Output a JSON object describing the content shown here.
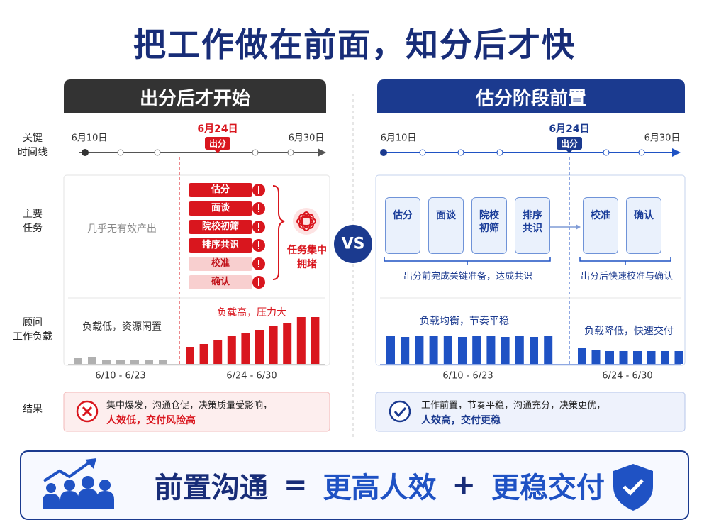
{
  "title": "把工作做在前面，知分后才快",
  "row_labels": [
    [
      "关键",
      "时间线"
    ],
    [
      "主要",
      "任务"
    ],
    [
      "顾问",
      "工作负载"
    ],
    [
      "结果"
    ]
  ],
  "left": {
    "header": "出分后才开始",
    "timeline": {
      "start": "6月10日",
      "mid": "6月24日",
      "mid_tag": "出分",
      "end": "6月30日"
    },
    "no_output": "几乎无有效产出",
    "tasks": [
      "估分",
      "面谈",
      "院校初筛",
      "排序共识",
      "校准",
      "确认"
    ],
    "crowd_label": [
      "任务集中",
      "拥堵"
    ],
    "load_before_label": "负载低，资源闲置",
    "load_after_label": "负载高，压力大",
    "load_before": [
      8,
      10,
      6,
      6,
      6,
      5,
      5
    ],
    "load_after": [
      24,
      28,
      34,
      40,
      44,
      48,
      54,
      58,
      66,
      66
    ],
    "period_before": "6/10 - 6/23",
    "period_after": "6/24 - 6/30",
    "result": [
      "集中爆发，沟通仓促，决策质量受影响，",
      "人效低，交付风险高"
    ]
  },
  "vs": "VS",
  "right": {
    "header": "估分阶段前置",
    "timeline": {
      "start": "6月10日",
      "mid": "6月24日",
      "mid_tag": "出分",
      "end": "6月30日"
    },
    "tasks_before": [
      "估分",
      "面谈",
      "院校初筛",
      "排序共识"
    ],
    "tasks_after": [
      "校准",
      "确认"
    ],
    "before_caption": "出分前完成关键准备，达成共识",
    "after_caption": "出分后快速校准与确认",
    "load_before_label": "负载均衡，节奏平稳",
    "load_after_label": "负载降低，快速交付",
    "load_before": [
      40,
      38,
      40,
      40,
      40,
      38,
      40,
      40,
      38,
      40,
      38,
      40
    ],
    "load_after": [
      22,
      20,
      18,
      18,
      18,
      18,
      18,
      18
    ],
    "period_before": "6/10 - 6/23",
    "period_after": "6/24 - 6/30",
    "result": [
      "工作前置，节奏平稳，沟通充分，决策更优，",
      "人效高，交付更稳"
    ]
  },
  "footer": {
    "left": "前置沟通",
    "eq": "=",
    "a": "更高人效",
    "plus": "+",
    "b": "更稳交付"
  }
}
